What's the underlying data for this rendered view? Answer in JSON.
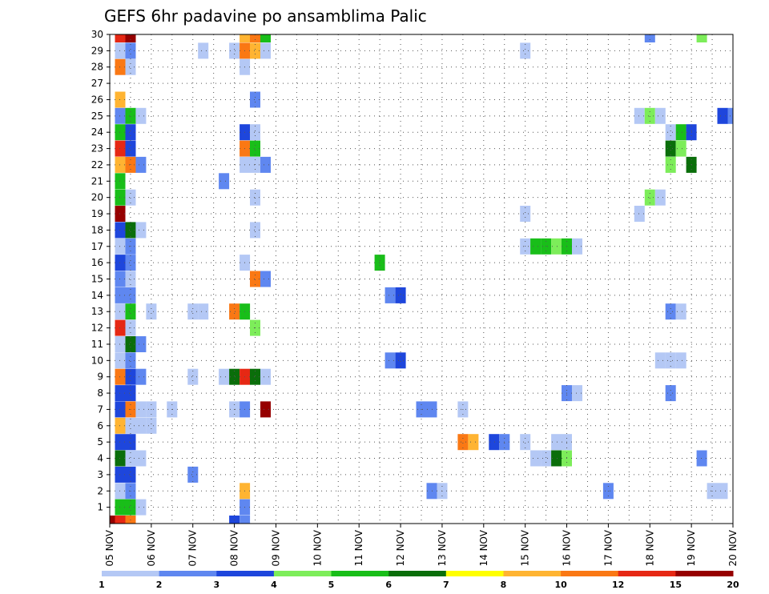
{
  "chart_data": {
    "type": "heatmap",
    "title": "GEFS 6hr padavine po ansamblima Palic",
    "xlabel": "",
    "ylabel": "",
    "x_tick_labels": [
      "05 NOV",
      "06 NOV",
      "07 NOV",
      "08 NOV",
      "09 NOV",
      "10 NOV",
      "11 NOV",
      "12 NOV",
      "13 NOV",
      "14 NOV",
      "15 NOV",
      "16 NOV",
      "17 NOV",
      "18 NOV",
      "19 NOV",
      "20 NOV"
    ],
    "y_tick_labels": [
      "1",
      "2",
      "3",
      "4",
      "5",
      "6",
      "7",
      "8",
      "9",
      "10",
      "11",
      "12",
      "13",
      "14",
      "15",
      "16",
      "17",
      "18",
      "19",
      "20",
      "21",
      "22",
      "23",
      "24",
      "25",
      "26",
      "27",
      "28",
      "29",
      "30"
    ],
    "xlim": [
      0,
      15
    ],
    "ylim": [
      0,
      30
    ],
    "cell_width_days": 0.25,
    "grid": true,
    "colorbar": {
      "labels": [
        "1",
        "2",
        "3",
        "4",
        "5",
        "6",
        "7",
        "8",
        "10",
        "12",
        "15",
        "20"
      ],
      "colors": [
        "#b4c8f5",
        "#5f87f0",
        "#1e46dc",
        "#7ded5a",
        "#19be19",
        "#0a6e0a",
        "#ffff00",
        "#ffb432",
        "#fa7814",
        "#e62814",
        "#960000"
      ]
    },
    "cells": [
      {
        "x": 0.0,
        "y": 0,
        "v": 20
      },
      {
        "x": 0.25,
        "y": 0,
        "v": 12
      },
      {
        "x": 0.25,
        "y": 1,
        "v": 5
      },
      {
        "x": 0.25,
        "y": 2,
        "v": 1
      },
      {
        "x": 0.25,
        "y": 3,
        "v": 3
      },
      {
        "x": 0.25,
        "y": 4,
        "v": 6
      },
      {
        "x": 0.25,
        "y": 5,
        "v": 3
      },
      {
        "x": 0.25,
        "y": 6,
        "v": 8
      },
      {
        "x": 0.25,
        "y": 7,
        "v": 3
      },
      {
        "x": 0.25,
        "y": 8,
        "v": 3
      },
      {
        "x": 0.25,
        "y": 9,
        "v": 10
      },
      {
        "x": 0.25,
        "y": 10,
        "v": 1
      },
      {
        "x": 0.25,
        "y": 11,
        "v": 1
      },
      {
        "x": 0.25,
        "y": 12,
        "v": 12
      },
      {
        "x": 0.25,
        "y": 13,
        "v": 1
      },
      {
        "x": 0.25,
        "y": 14,
        "v": 2
      },
      {
        "x": 0.25,
        "y": 15,
        "v": 2
      },
      {
        "x": 0.25,
        "y": 16,
        "v": 3
      },
      {
        "x": 0.25,
        "y": 17,
        "v": 1
      },
      {
        "x": 0.25,
        "y": 18,
        "v": 3
      },
      {
        "x": 0.25,
        "y": 19,
        "v": 15
      },
      {
        "x": 0.25,
        "y": 20,
        "v": 5
      },
      {
        "x": 0.25,
        "y": 21,
        "v": 5
      },
      {
        "x": 0.25,
        "y": 22,
        "v": 8
      },
      {
        "x": 0.25,
        "y": 23,
        "v": 12
      },
      {
        "x": 0.25,
        "y": 24,
        "v": 5
      },
      {
        "x": 0.25,
        "y": 25,
        "v": 2
      },
      {
        "x": 0.25,
        "y": 26,
        "v": 8
      },
      {
        "x": 0.25,
        "y": 28,
        "v": 10
      },
      {
        "x": 0.25,
        "y": 29,
        "v": 1
      },
      {
        "x": 0.25,
        "y": 30,
        "v": 12
      },
      {
        "x": 0.5,
        "y": 0,
        "v": 10
      },
      {
        "x": 0.5,
        "y": 1,
        "v": 5
      },
      {
        "x": 0.5,
        "y": 2,
        "v": 2
      },
      {
        "x": 0.5,
        "y": 3,
        "v": 3
      },
      {
        "x": 0.5,
        "y": 4,
        "v": 1
      },
      {
        "x": 0.5,
        "y": 5,
        "v": 3
      },
      {
        "x": 0.5,
        "y": 6,
        "v": 1
      },
      {
        "x": 0.5,
        "y": 7,
        "v": 10
      },
      {
        "x": 0.5,
        "y": 8,
        "v": 3
      },
      {
        "x": 0.5,
        "y": 9,
        "v": 3
      },
      {
        "x": 0.5,
        "y": 10,
        "v": 2
      },
      {
        "x": 0.5,
        "y": 11,
        "v": 6
      },
      {
        "x": 0.5,
        "y": 12,
        "v": 1
      },
      {
        "x": 0.5,
        "y": 13,
        "v": 5
      },
      {
        "x": 0.5,
        "y": 14,
        "v": 2
      },
      {
        "x": 0.5,
        "y": 15,
        "v": 1
      },
      {
        "x": 0.5,
        "y": 16,
        "v": 2
      },
      {
        "x": 0.5,
        "y": 17,
        "v": 2
      },
      {
        "x": 0.5,
        "y": 18,
        "v": 6
      },
      {
        "x": 0.5,
        "y": 20,
        "v": 1
      },
      {
        "x": 0.5,
        "y": 22,
        "v": 10
      },
      {
        "x": 0.5,
        "y": 23,
        "v": 3
      },
      {
        "x": 0.5,
        "y": 24,
        "v": 3
      },
      {
        "x": 0.5,
        "y": 25,
        "v": 5
      },
      {
        "x": 0.5,
        "y": 28,
        "v": 1
      },
      {
        "x": 0.5,
        "y": 29,
        "v": 2
      },
      {
        "x": 0.5,
        "y": 30,
        "v": 15
      },
      {
        "x": 0.75,
        "y": 1,
        "v": 1
      },
      {
        "x": 0.75,
        "y": 4,
        "v": 1
      },
      {
        "x": 0.75,
        "y": 6,
        "v": 1
      },
      {
        "x": 0.75,
        "y": 7,
        "v": 1
      },
      {
        "x": 0.75,
        "y": 9,
        "v": 2
      },
      {
        "x": 0.75,
        "y": 11,
        "v": 2
      },
      {
        "x": 0.75,
        "y": 18,
        "v": 1
      },
      {
        "x": 0.75,
        "y": 22,
        "v": 2
      },
      {
        "x": 0.75,
        "y": 25,
        "v": 1
      },
      {
        "x": 1.0,
        "y": 6,
        "v": 1
      },
      {
        "x": 1.0,
        "y": 7,
        "v": 1
      },
      {
        "x": 1.0,
        "y": 13,
        "v": 1
      },
      {
        "x": 1.5,
        "y": 7,
        "v": 1
      },
      {
        "x": 2.0,
        "y": 3,
        "v": 2
      },
      {
        "x": 2.0,
        "y": 9,
        "v": 1
      },
      {
        "x": 2.0,
        "y": 13,
        "v": 1
      },
      {
        "x": 2.25,
        "y": 13,
        "v": 1
      },
      {
        "x": 2.25,
        "y": 29,
        "v": 1
      },
      {
        "x": 2.75,
        "y": 9,
        "v": 1
      },
      {
        "x": 2.75,
        "y": 21,
        "v": 2
      },
      {
        "x": 3.0,
        "y": 0,
        "v": 3
      },
      {
        "x": 3.0,
        "y": 7,
        "v": 1
      },
      {
        "x": 3.0,
        "y": 9,
        "v": 6
      },
      {
        "x": 3.0,
        "y": 13,
        "v": 10
      },
      {
        "x": 3.0,
        "y": 29,
        "v": 1
      },
      {
        "x": 3.25,
        "y": 0,
        "v": 2
      },
      {
        "x": 3.25,
        "y": 1,
        "v": 2
      },
      {
        "x": 3.25,
        "y": 2,
        "v": 8
      },
      {
        "x": 3.25,
        "y": 7,
        "v": 2
      },
      {
        "x": 3.25,
        "y": 9,
        "v": 12
      },
      {
        "x": 3.25,
        "y": 13,
        "v": 5
      },
      {
        "x": 3.25,
        "y": 16,
        "v": 1
      },
      {
        "x": 3.25,
        "y": 22,
        "v": 1
      },
      {
        "x": 3.25,
        "y": 23,
        "v": 10
      },
      {
        "x": 3.25,
        "y": 24,
        "v": 3
      },
      {
        "x": 3.25,
        "y": 28,
        "v": 1
      },
      {
        "x": 3.25,
        "y": 29,
        "v": 10
      },
      {
        "x": 3.25,
        "y": 30,
        "v": 8
      },
      {
        "x": 3.5,
        "y": 9,
        "v": 6
      },
      {
        "x": 3.5,
        "y": 12,
        "v": 4
      },
      {
        "x": 3.5,
        "y": 15,
        "v": 10
      },
      {
        "x": 3.5,
        "y": 18,
        "v": 1
      },
      {
        "x": 3.5,
        "y": 20,
        "v": 1
      },
      {
        "x": 3.5,
        "y": 22,
        "v": 1
      },
      {
        "x": 3.5,
        "y": 23,
        "v": 5
      },
      {
        "x": 3.5,
        "y": 24,
        "v": 1
      },
      {
        "x": 3.5,
        "y": 26,
        "v": 2
      },
      {
        "x": 3.5,
        "y": 29,
        "v": 8
      },
      {
        "x": 3.5,
        "y": 30,
        "v": 10
      },
      {
        "x": 3.75,
        "y": 7,
        "v": 20
      },
      {
        "x": 3.75,
        "y": 9,
        "v": 1
      },
      {
        "x": 3.75,
        "y": 15,
        "v": 2
      },
      {
        "x": 3.75,
        "y": 22,
        "v": 2
      },
      {
        "x": 3.75,
        "y": 29,
        "v": 1
      },
      {
        "x": 3.75,
        "y": 30,
        "v": 5
      },
      {
        "x": 6.5,
        "y": 16,
        "v": 5
      },
      {
        "x": 6.75,
        "y": 10,
        "v": 2
      },
      {
        "x": 6.75,
        "y": 14,
        "v": 2
      },
      {
        "x": 7.0,
        "y": 10,
        "v": 3
      },
      {
        "x": 7.0,
        "y": 14,
        "v": 3
      },
      {
        "x": 7.5,
        "y": 7,
        "v": 2
      },
      {
        "x": 7.75,
        "y": 2,
        "v": 2
      },
      {
        "x": 7.75,
        "y": 7,
        "v": 2
      },
      {
        "x": 8.0,
        "y": 2,
        "v": 1
      },
      {
        "x": 8.5,
        "y": 5,
        "v": 10
      },
      {
        "x": 8.5,
        "y": 7,
        "v": 1
      },
      {
        "x": 8.75,
        "y": 5,
        "v": 8
      },
      {
        "x": 9.25,
        "y": 5,
        "v": 3
      },
      {
        "x": 9.5,
        "y": 5,
        "v": 2
      },
      {
        "x": 10.0,
        "y": 5,
        "v": 1
      },
      {
        "x": 10.0,
        "y": 17,
        "v": 1
      },
      {
        "x": 10.0,
        "y": 19,
        "v": 1
      },
      {
        "x": 10.0,
        "y": 29,
        "v": 1
      },
      {
        "x": 10.25,
        "y": 4,
        "v": 1
      },
      {
        "x": 10.25,
        "y": 17,
        "v": 5
      },
      {
        "x": 10.5,
        "y": 4,
        "v": 1
      },
      {
        "x": 10.5,
        "y": 17,
        "v": 5
      },
      {
        "x": 10.75,
        "y": 4,
        "v": 6
      },
      {
        "x": 10.75,
        "y": 5,
        "v": 1
      },
      {
        "x": 10.75,
        "y": 17,
        "v": 4
      },
      {
        "x": 11.0,
        "y": 4,
        "v": 4
      },
      {
        "x": 11.0,
        "y": 5,
        "v": 1
      },
      {
        "x": 11.0,
        "y": 8,
        "v": 2
      },
      {
        "x": 11.0,
        "y": 17,
        "v": 5
      },
      {
        "x": 11.25,
        "y": 8,
        "v": 1
      },
      {
        "x": 11.25,
        "y": 17,
        "v": 1
      },
      {
        "x": 12.0,
        "y": 2,
        "v": 2
      },
      {
        "x": 12.75,
        "y": 19,
        "v": 1
      },
      {
        "x": 12.75,
        "y": 25,
        "v": 1
      },
      {
        "x": 13.0,
        "y": 20,
        "v": 4
      },
      {
        "x": 13.0,
        "y": 25,
        "v": 4
      },
      {
        "x": 13.0,
        "y": 30,
        "v": 2
      },
      {
        "x": 13.25,
        "y": 10,
        "v": 1
      },
      {
        "x": 13.25,
        "y": 20,
        "v": 1
      },
      {
        "x": 13.25,
        "y": 25,
        "v": 1
      },
      {
        "x": 13.5,
        "y": 8,
        "v": 2
      },
      {
        "x": 13.5,
        "y": 10,
        "v": 1
      },
      {
        "x": 13.5,
        "y": 13,
        "v": 2
      },
      {
        "x": 13.5,
        "y": 22,
        "v": 4
      },
      {
        "x": 13.5,
        "y": 23,
        "v": 6
      },
      {
        "x": 13.5,
        "y": 24,
        "v": 1
      },
      {
        "x": 13.75,
        "y": 10,
        "v": 1
      },
      {
        "x": 13.75,
        "y": 13,
        "v": 1
      },
      {
        "x": 13.75,
        "y": 23,
        "v": 4
      },
      {
        "x": 13.75,
        "y": 24,
        "v": 5
      },
      {
        "x": 14.0,
        "y": 22,
        "v": 6
      },
      {
        "x": 14.0,
        "y": 24,
        "v": 3
      },
      {
        "x": 14.25,
        "y": 4,
        "v": 2
      },
      {
        "x": 14.25,
        "y": 30,
        "v": 4
      },
      {
        "x": 14.5,
        "y": 2,
        "v": 1
      },
      {
        "x": 14.75,
        "y": 2,
        "v": 1
      },
      {
        "x": 14.75,
        "y": 25,
        "v": 3
      },
      {
        "x": 15.0,
        "y": 25,
        "v": 2
      }
    ]
  }
}
